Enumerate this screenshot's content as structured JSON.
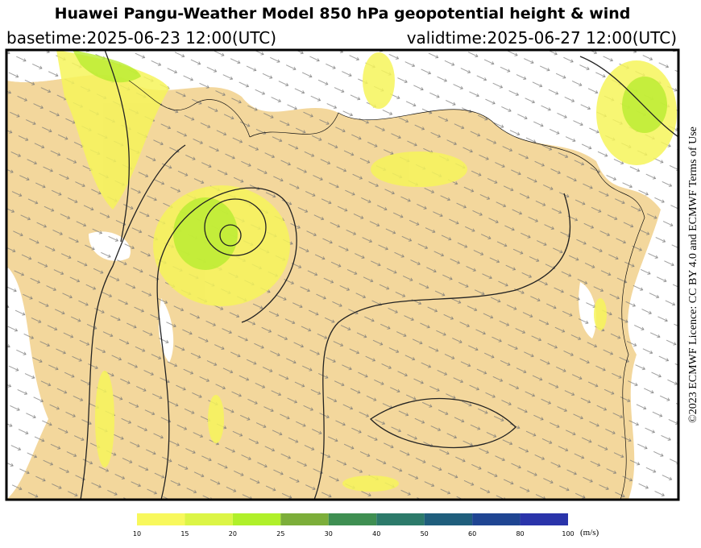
{
  "header": {
    "title": "Huawei Pangu-Weather Model 850 hPa geopotential height & wind",
    "basetime": "basetime:2025-06-23 12:00(UTC)",
    "validtime": "validtime:2025-06-27 12:00(UTC)"
  },
  "licence": "©2023 ECMWF Licence: CC BY 4.0 and ECMWF Terms of Use",
  "colorbar": {
    "ticks": [
      10,
      15,
      20,
      25,
      30,
      40,
      50,
      60,
      80,
      100
    ],
    "colors": [
      "#f8f85c",
      "#dcf546",
      "#b0f02a",
      "#7cae3a",
      "#3f8f52",
      "#2c7a6a",
      "#1f5e7c",
      "#1f4592",
      "#2a34aa"
    ],
    "unit": "(m/s)"
  }
}
